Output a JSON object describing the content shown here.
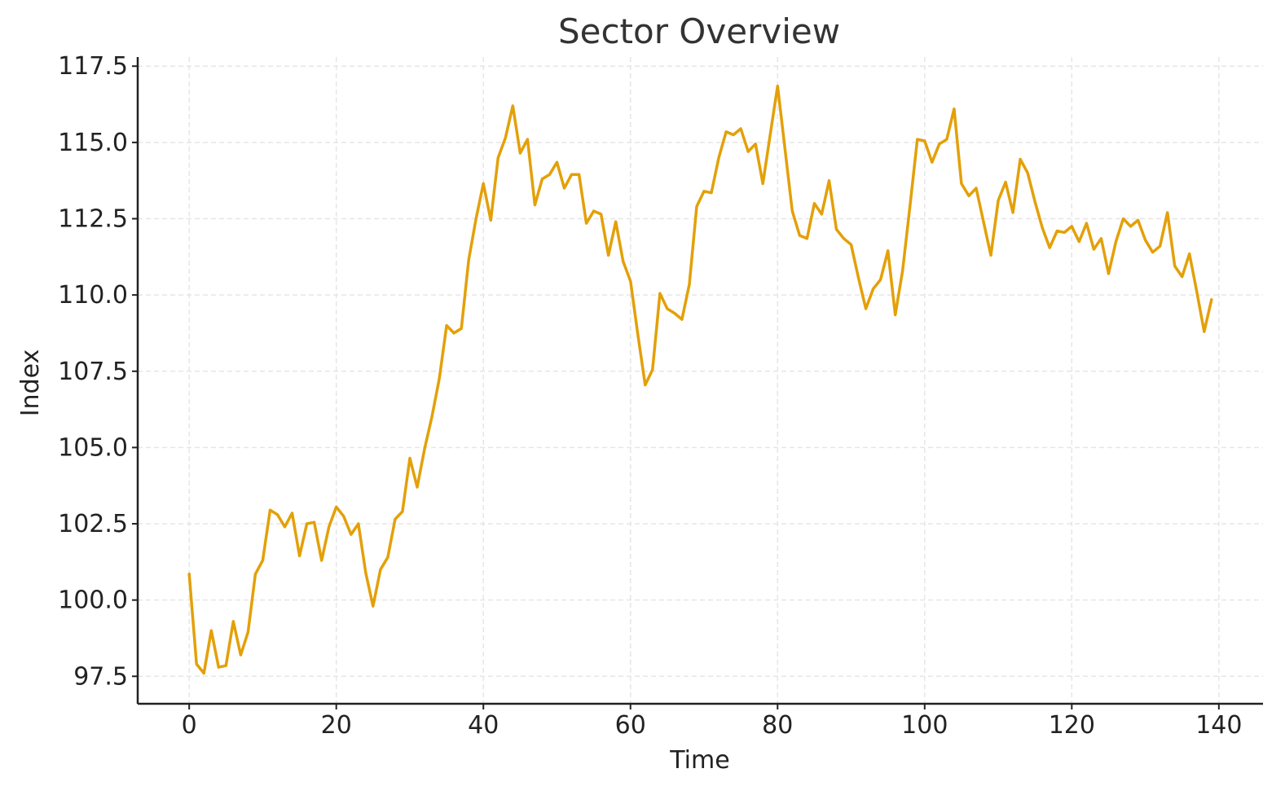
{
  "chart_data": {
    "type": "line",
    "title": "Sector Overview",
    "xlabel": "Time",
    "ylabel": "Index",
    "xlim": [
      -7,
      146
    ],
    "ylim": [
      96.6,
      117.8
    ],
    "x_ticks": [
      0,
      20,
      40,
      60,
      80,
      100,
      120,
      140
    ],
    "x_tick_labels": [
      "0",
      "20",
      "40",
      "60",
      "80",
      "100",
      "120",
      "140"
    ],
    "y_ticks": [
      97.5,
      100.0,
      102.5,
      105.0,
      107.5,
      110.0,
      112.5,
      115.0,
      117.5
    ],
    "y_tick_labels": [
      "97.5",
      "100.0",
      "102.5",
      "105.0",
      "107.5",
      "110.0",
      "112.5",
      "115.0",
      "117.5"
    ],
    "grid": true,
    "series": [
      {
        "color": "#E3A008",
        "x": [
          0,
          1,
          2,
          3,
          4,
          5,
          6,
          7,
          8,
          9,
          10,
          11,
          12,
          13,
          14,
          15,
          16,
          17,
          18,
          19,
          20,
          21,
          22,
          23,
          24,
          25,
          26,
          27,
          28,
          29,
          30,
          31,
          32,
          33,
          34,
          35,
          36,
          37,
          38,
          39,
          40,
          41,
          42,
          43,
          44,
          45,
          46,
          47,
          48,
          49,
          50,
          51,
          52,
          53,
          54,
          55,
          56,
          57,
          58,
          59,
          60,
          61,
          62,
          63,
          64,
          65,
          66,
          67,
          68,
          69,
          70,
          71,
          72,
          73,
          74,
          75,
          76,
          77,
          78,
          79,
          80,
          81,
          82,
          83,
          84,
          85,
          86,
          87,
          88,
          89,
          90,
          91,
          92,
          93,
          94,
          95,
          96,
          97,
          98,
          99,
          100,
          101,
          102,
          103,
          104,
          105,
          106,
          107,
          108,
          109,
          110,
          111,
          112,
          113,
          114,
          115,
          116,
          117,
          118,
          119,
          120,
          121,
          122,
          123,
          124,
          125,
          126,
          127,
          128,
          129,
          130,
          131,
          132,
          133,
          134,
          135,
          136,
          137,
          138,
          139
        ],
        "values": [
          100.85,
          97.9,
          97.6,
          99.0,
          97.8,
          97.85,
          99.3,
          98.2,
          98.95,
          100.85,
          101.3,
          102.95,
          102.8,
          102.4,
          102.85,
          101.45,
          102.5,
          102.55,
          101.3,
          102.4,
          103.05,
          102.75,
          102.15,
          102.5,
          100.9,
          99.8,
          101.0,
          101.4,
          102.65,
          102.9,
          104.65,
          103.7,
          104.95,
          106.0,
          107.25,
          109.0,
          108.75,
          108.9,
          111.15,
          112.5,
          113.65,
          112.45,
          114.5,
          115.15,
          116.2,
          114.65,
          115.1,
          112.95,
          113.8,
          113.95,
          114.35,
          113.5,
          113.95,
          113.95,
          112.35,
          112.75,
          112.65,
          111.3,
          112.4,
          111.1,
          110.45,
          108.7,
          107.05,
          107.55,
          110.05,
          109.55,
          109.4,
          109.2,
          110.35,
          112.9,
          113.4,
          113.35,
          114.5,
          115.35,
          115.25,
          115.45,
          114.7,
          114.95,
          113.65,
          115.25,
          116.85,
          114.8,
          112.75,
          111.95,
          111.85,
          113.0,
          112.65,
          113.75,
          112.15,
          111.85,
          111.65,
          110.55,
          109.55,
          110.2,
          110.5,
          111.45,
          109.35,
          110.8,
          112.9,
          115.1,
          115.05,
          114.35,
          114.95,
          115.1,
          116.1,
          113.65,
          113.25,
          113.5,
          112.4,
          111.3,
          113.1,
          113.7,
          112.7,
          114.45,
          114.0,
          113.05,
          112.2,
          111.55,
          112.1,
          112.05,
          112.25,
          111.75,
          112.35,
          111.5,
          111.85,
          110.7,
          111.75,
          112.5,
          112.25,
          112.45,
          111.8,
          111.4,
          111.6,
          112.7,
          110.95,
          110.6,
          111.35,
          110.1,
          108.8,
          109.85
        ]
      }
    ]
  }
}
